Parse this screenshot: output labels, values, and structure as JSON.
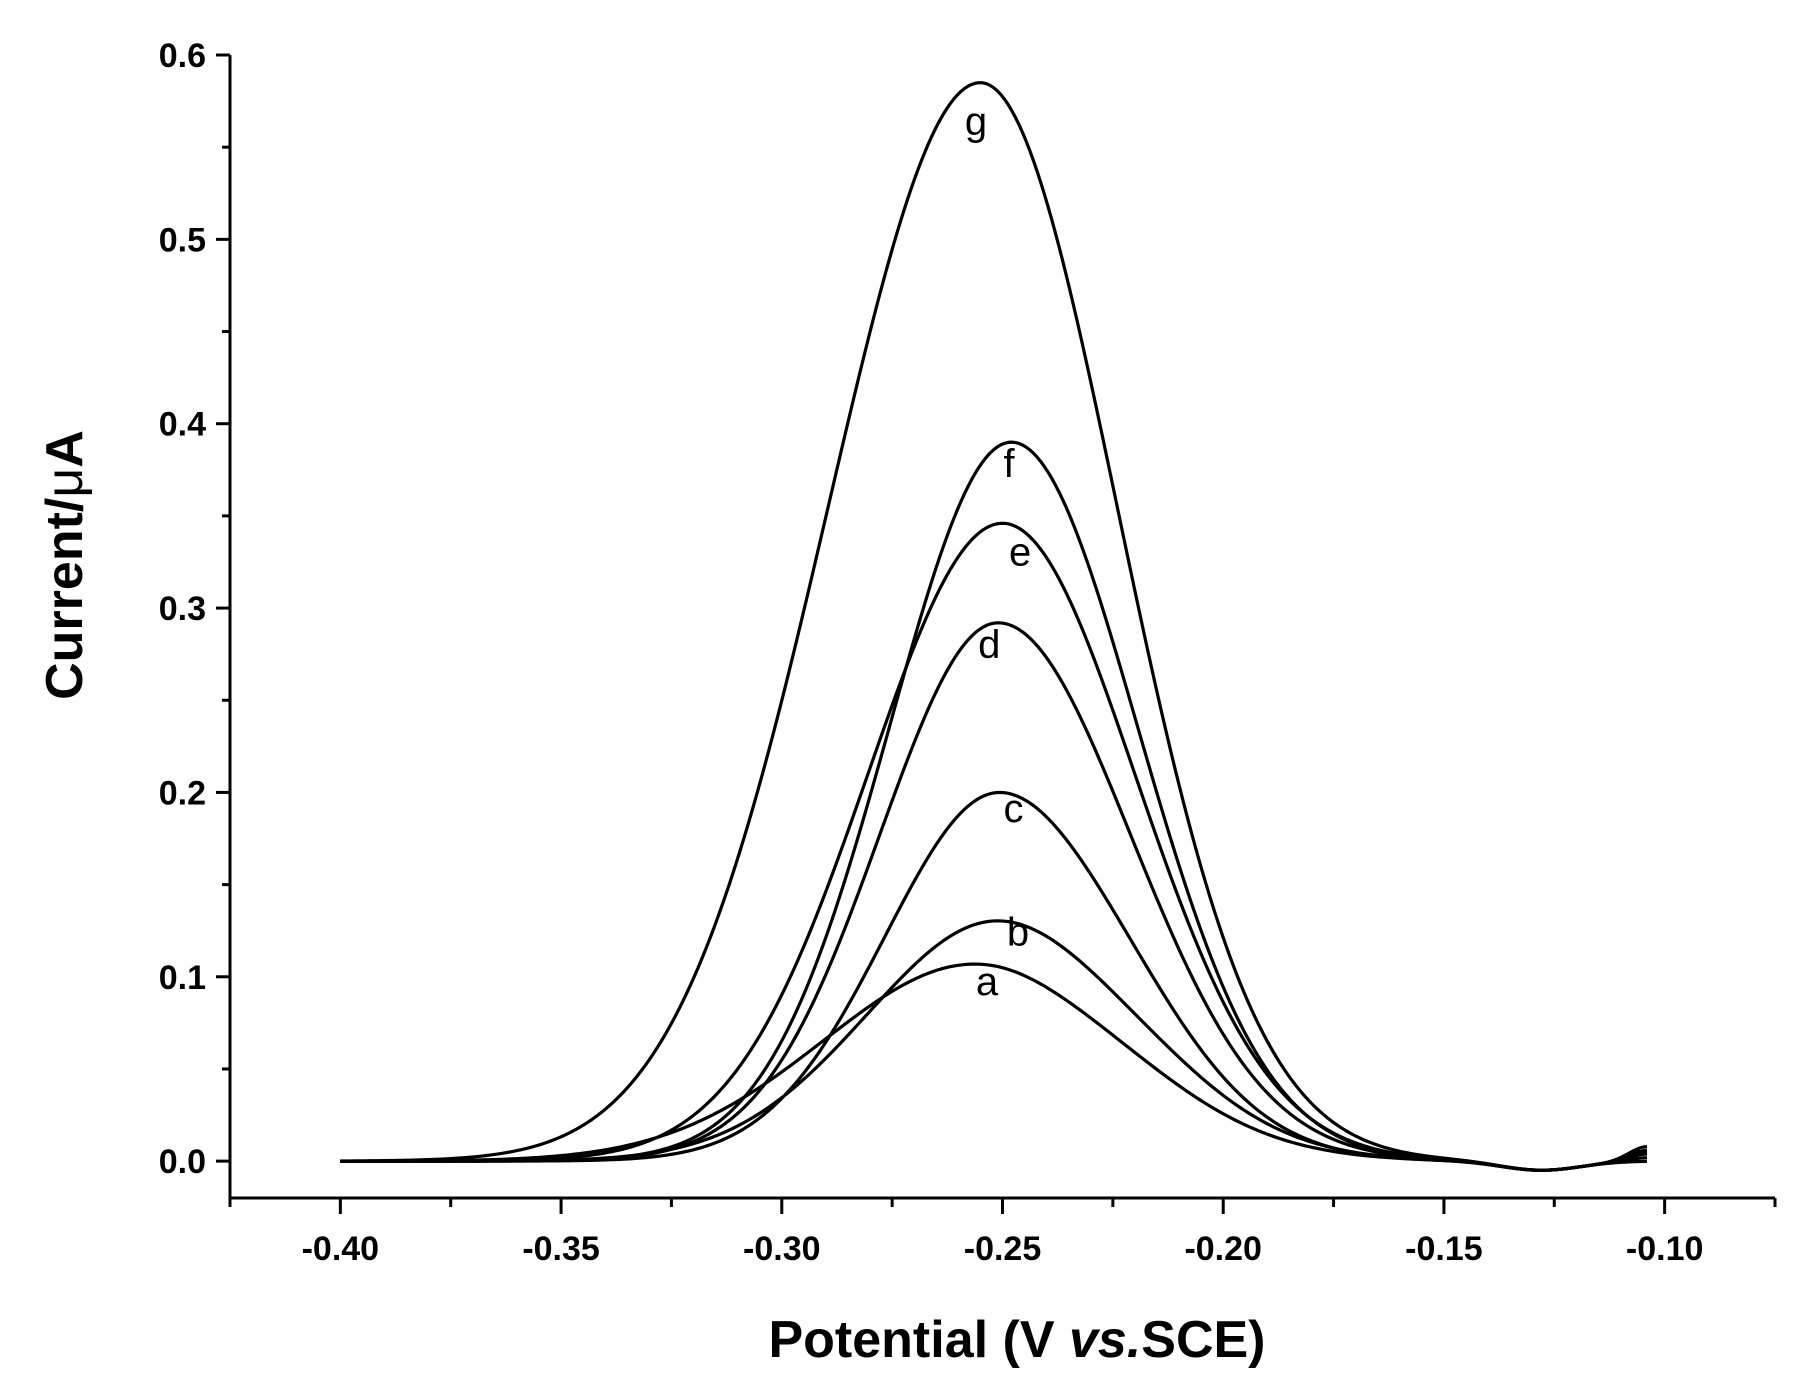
{
  "chart_data": {
    "type": "line",
    "title": "",
    "xlabel_parts": [
      "Potential (V ",
      "vs.",
      "SCE)"
    ],
    "ylabel_parts": [
      "Current/",
      "μ",
      "A"
    ],
    "xlim": [
      -0.425,
      -0.075
    ],
    "ylim": [
      -0.02,
      0.6
    ],
    "x_ticks": [
      -0.4,
      -0.35,
      -0.3,
      -0.25,
      -0.2,
      -0.15,
      -0.1
    ],
    "x_tick_labels": [
      "-0.40",
      "-0.35",
      "-0.30",
      "-0.25",
      "-0.20",
      "-0.15",
      "-0.10"
    ],
    "y_ticks": [
      0.0,
      0.1,
      0.2,
      0.3,
      0.4,
      0.5,
      0.6
    ],
    "y_tick_labels": [
      "0.0",
      "0.1",
      "0.2",
      "0.3",
      "0.4",
      "0.5",
      "0.6"
    ],
    "grid": false,
    "x_range_data": [
      -0.4,
      -0.104
    ],
    "series": [
      {
        "name": "a",
        "peak_potential": -0.255,
        "peak_current": 0.108,
        "label_at": [
          -0.2535,
          0.09
        ]
      },
      {
        "name": "b",
        "peak_potential": -0.25,
        "peak_current": 0.132,
        "label_at": [
          -0.2465,
          0.117
        ]
      },
      {
        "name": "c",
        "peak_potential": -0.25,
        "peak_current": 0.202,
        "label_at": [
          -0.2475,
          0.184
        ]
      },
      {
        "name": "d",
        "peak_potential": -0.251,
        "peak_current": 0.292,
        "label_at": [
          -0.253,
          0.273
        ]
      },
      {
        "name": "e",
        "peak_potential": -0.25,
        "peak_current": 0.346,
        "label_at": [
          -0.246,
          0.323
        ]
      },
      {
        "name": "f",
        "peak_potential": -0.248,
        "peak_current": 0.39,
        "label_at": [
          -0.2485,
          0.371
        ]
      },
      {
        "name": "g",
        "peak_potential": -0.255,
        "peak_current": 0.585,
        "label_at": [
          -0.256,
          0.557
        ]
      }
    ]
  }
}
